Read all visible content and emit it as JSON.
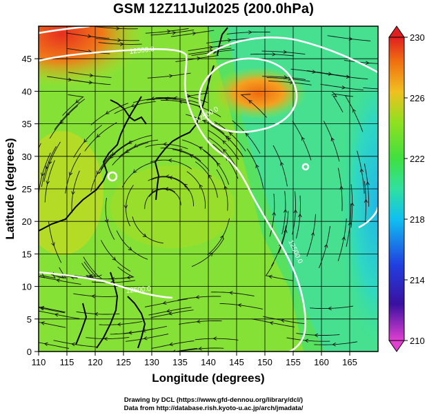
{
  "title": "GSM 12Z11Jul2025 (200.0hPa)",
  "x_axis": {
    "label": "Longitude (degrees)",
    "ticks": [
      "110",
      "115",
      "120",
      "125",
      "130",
      "135",
      "140",
      "145",
      "150",
      "155",
      "160",
      "165"
    ],
    "min": 110,
    "max": 170
  },
  "y_axis": {
    "label": "Latitude  (degrees)",
    "ticks": [
      "0",
      "5",
      "10",
      "15",
      "20",
      "25",
      "30",
      "35",
      "40",
      "45"
    ],
    "min": 0,
    "max": 50
  },
  "colorbar": {
    "ticks": [
      "230",
      "226",
      "222",
      "218",
      "214",
      "210"
    ],
    "min": 210,
    "max": 230,
    "colors": [
      "#e040d0",
      "#3a10a0",
      "#2040e0",
      "#10c0f0",
      "#30e0a0",
      "#40e040",
      "#90e020",
      "#f0c020",
      "#f07010",
      "#e02020"
    ]
  },
  "contour_labels": [
    "12500.0",
    "12500.0",
    "12500.0",
    "12500.0"
  ],
  "credits": {
    "line1": "Drawing by DCL (https://www.gfd-dennou.org/library/dcl/)",
    "line2": "Data from http://database.rish.kyoto-u.ac.jp/arch/jmadata/"
  }
}
